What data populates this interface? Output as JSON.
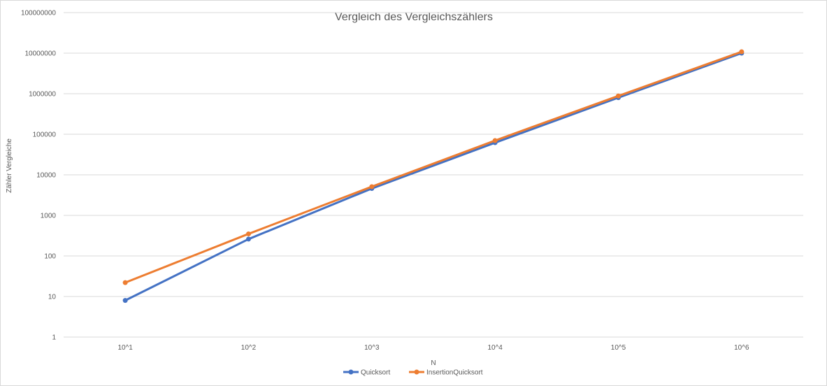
{
  "chart_data": {
    "type": "line",
    "title": "Vergleich des Vergleichszählers",
    "xlabel": "N",
    "ylabel": "Zähler Vergleiche",
    "categories": [
      "10^1",
      "10^2",
      "10^3",
      "10^4",
      "10^5",
      "10^6"
    ],
    "y_scale": "log",
    "ylim": [
      1,
      100000000
    ],
    "y_ticks": [
      "1",
      "10",
      "100",
      "1000",
      "10000",
      "100000",
      "1000000",
      "10000000",
      "100000000"
    ],
    "grid": "horizontal",
    "legend_position": "bottom",
    "series": [
      {
        "name": "Quicksort",
        "color": "#4472C4",
        "values": [
          8,
          260,
          4600,
          62000,
          800000,
          10000000
        ]
      },
      {
        "name": "InsertionQuicksort",
        "color": "#ED7D31",
        "values": [
          22,
          350,
          5100,
          70000,
          880000,
          10800000
        ]
      }
    ]
  }
}
